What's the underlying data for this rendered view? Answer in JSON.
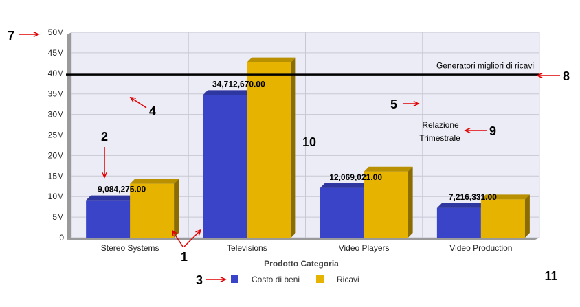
{
  "chart_data": {
    "type": "bar",
    "title": "",
    "xlabel": "Prodotto Categoria",
    "ylabel": "",
    "categories": [
      "Stereo Systems",
      "Televisions",
      "Video Players",
      "Video Production"
    ],
    "series": [
      {
        "name": "Costo di beni",
        "values": [
          9084275,
          34712670,
          12069021,
          7216331
        ],
        "color": "#3a44c8"
      },
      {
        "name": "Ricavi",
        "values": [
          13100000,
          42700000,
          16100000,
          9300000
        ],
        "color": "#e6b400"
      }
    ],
    "data_labels": [
      "9,084,275.00",
      "34,712,670.00",
      "12,069,021.00",
      "7,216,331.00"
    ],
    "y_ticks": [
      {
        "value": 0,
        "label": "0"
      },
      {
        "value": 5000000,
        "label": "5M"
      },
      {
        "value": 10000000,
        "label": "10M"
      },
      {
        "value": 15000000,
        "label": "15M"
      },
      {
        "value": 20000000,
        "label": "20M"
      },
      {
        "value": 25000000,
        "label": "25M"
      },
      {
        "value": 30000000,
        "label": "30M"
      },
      {
        "value": 35000000,
        "label": "35M"
      },
      {
        "value": 40000000,
        "label": "40M"
      },
      {
        "value": 45000000,
        "label": "45M"
      },
      {
        "value": 50000000,
        "label": "50M"
      }
    ],
    "ylim": [
      0,
      50000000
    ],
    "grid": true,
    "legend_position": "bottom-center",
    "reference_line": {
      "value": 39700000,
      "label": "Generatori migliori di ricavi",
      "color": "#000000"
    },
    "text_annotation": [
      "Relazione",
      "Trimestrale"
    ],
    "plot_background": "#ececf6",
    "grid_color": "#c8c8d4",
    "callout_color": "#e00000",
    "callouts": [
      "1",
      "2",
      "3",
      "4",
      "5",
      "7",
      "8",
      "9",
      "10",
      "11"
    ]
  }
}
